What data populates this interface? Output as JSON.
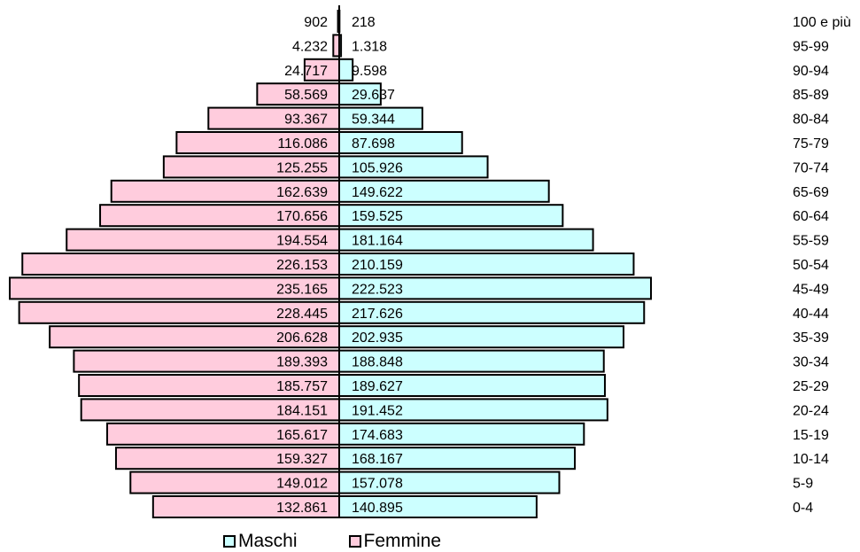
{
  "chart_data": {
    "type": "bar",
    "orientation": "population-pyramid",
    "categories": [
      "100 e più",
      "95-99",
      "90-94",
      "85-89",
      "80-84",
      "75-79",
      "70-74",
      "65-69",
      "60-64",
      "55-59",
      "50-54",
      "45-49",
      "40-44",
      "35-39",
      "30-34",
      "25-29",
      "20-24",
      "15-19",
      "10-14",
      "5-9",
      "0-4"
    ],
    "series": [
      {
        "name": "Femmine",
        "side": "left",
        "color": "#ffccdd",
        "values": [
          902,
          4232,
          24717,
          58569,
          93367,
          116086,
          125255,
          162639,
          170656,
          194554,
          226153,
          235165,
          228445,
          206628,
          189393,
          185757,
          184151,
          165617,
          159327,
          149012,
          132861
        ],
        "labels": [
          "902",
          "4.232",
          "24.717",
          "58.569",
          "93.367",
          "116.086",
          "125.255",
          "162.639",
          "170.656",
          "194.554",
          "226.153",
          "235.165",
          "228.445",
          "206.628",
          "189.393",
          "185.757",
          "184.151",
          "165.617",
          "159.327",
          "149.012",
          "132.861"
        ]
      },
      {
        "name": "Maschi",
        "side": "right",
        "color": "#ccffff",
        "values": [
          218,
          1318,
          9598,
          29637,
          59344,
          87698,
          105926,
          149622,
          159525,
          181164,
          210159,
          222523,
          217626,
          202935,
          188848,
          189627,
          191452,
          174683,
          168167,
          157078,
          140895
        ],
        "labels": [
          "218",
          "1.318",
          "9.598",
          "29.637",
          "59.344",
          "87.698",
          "105.926",
          "149.622",
          "159.525",
          "181.164",
          "210.159",
          "222.523",
          "217.626",
          "202.935",
          "188.848",
          "189.627",
          "191.452",
          "174.683",
          "168.167",
          "157.078",
          "140.895"
        ]
      }
    ],
    "legend": {
      "placement": "bottom",
      "items": [
        "Maschi",
        "Femmine"
      ]
    },
    "grid": false
  }
}
